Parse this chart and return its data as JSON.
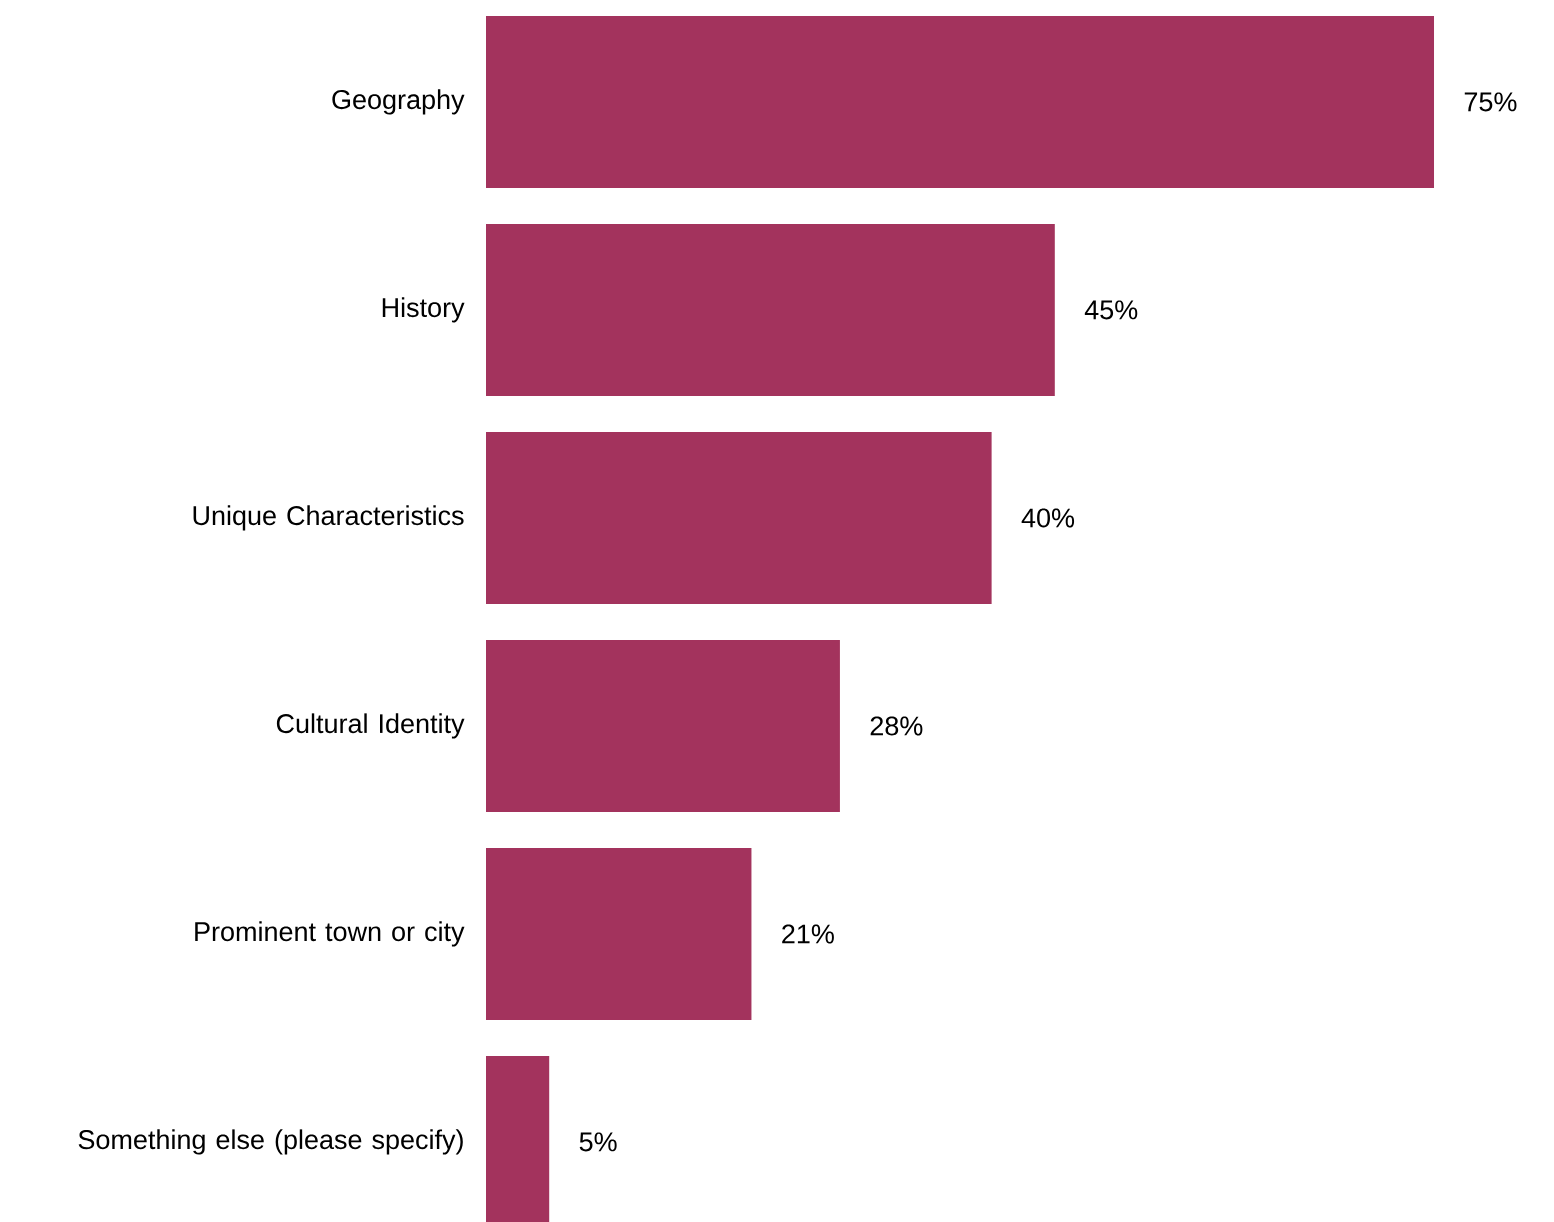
{
  "chart_data": {
    "type": "bar",
    "orientation": "horizontal",
    "categories": [
      "Geography",
      "History",
      "Unique Characteristics",
      "Cultural Identity",
      "Prominent town or city",
      "Something else (please specify)"
    ],
    "values": [
      75,
      45,
      40,
      28,
      21,
      5
    ],
    "value_labels": [
      "75%",
      "45%",
      "40%",
      "28%",
      "21%",
      "5%"
    ],
    "color": "#a3335d"
  }
}
